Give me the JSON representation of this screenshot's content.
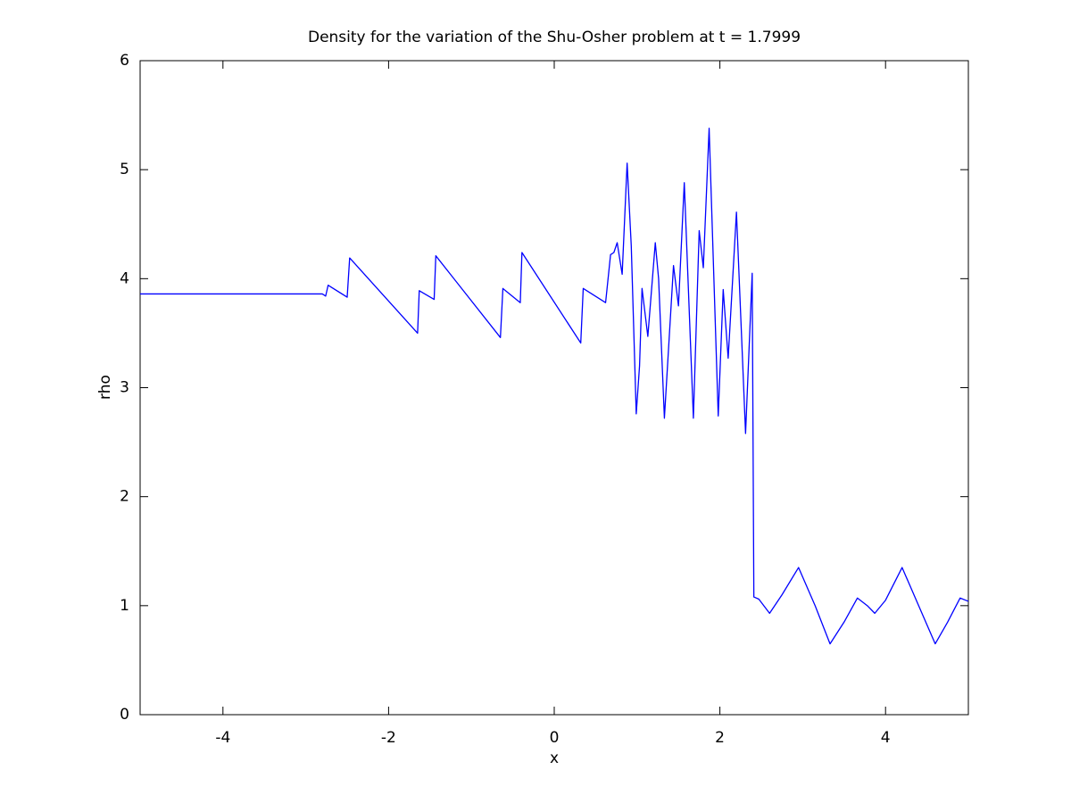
{
  "chart_data": {
    "type": "line",
    "title": "Density for the variation of the Shu-Osher problem at t = 1.7999",
    "x_label": "x",
    "y_label": "rho",
    "x": [
      -5,
      -2.8,
      -2.76,
      -2.73,
      -2.5,
      -2.47,
      -1.65,
      -1.63,
      -1.45,
      -1.43,
      -0.65,
      -0.62,
      -0.41,
      -0.39,
      0.32,
      0.35,
      0.62,
      0.68,
      0.72,
      0.76,
      0.82,
      0.88,
      0.93,
      0.99,
      1.03,
      1.06,
      1.13,
      1.22,
      1.26,
      1.33,
      1.44,
      1.5,
      1.57,
      1.68,
      1.75,
      1.8,
      1.87,
      1.98,
      2.04,
      2.1,
      2.2,
      2.31,
      2.39,
      2.41,
      2.47,
      2.6,
      2.75,
      2.95,
      3.15,
      3.33,
      3.5,
      3.66,
      3.78,
      3.87,
      4.0,
      4.2,
      4.4,
      4.6,
      4.75,
      4.9,
      5
    ],
    "values": [
      3.86,
      3.86,
      3.84,
      3.94,
      3.83,
      4.19,
      3.5,
      3.89,
      3.81,
      4.21,
      3.46,
      3.91,
      3.78,
      4.24,
      3.41,
      3.91,
      3.78,
      4.22,
      4.24,
      4.33,
      4.04,
      5.06,
      4.3,
      2.76,
      3.2,
      3.91,
      3.47,
      4.33,
      4.0,
      2.72,
      4.12,
      3.75,
      4.88,
      2.72,
      4.44,
      4.1,
      5.38,
      2.74,
      3.9,
      3.27,
      4.61,
      2.58,
      4.05,
      1.08,
      1.06,
      0.93,
      1.1,
      1.35,
      1.0,
      0.65,
      0.85,
      1.07,
      1.0,
      0.93,
      1.05,
      1.35,
      1.0,
      0.65,
      0.85,
      1.07,
      1.04
    ],
    "color": "#0000ff",
    "xlim": [
      -5,
      5
    ],
    "xticks": [
      -4,
      -2,
      0,
      2,
      4
    ],
    "ylim": [
      0,
      6
    ],
    "yticks": [
      0,
      1,
      2,
      3,
      4,
      5,
      6
    ],
    "grid": false
  }
}
